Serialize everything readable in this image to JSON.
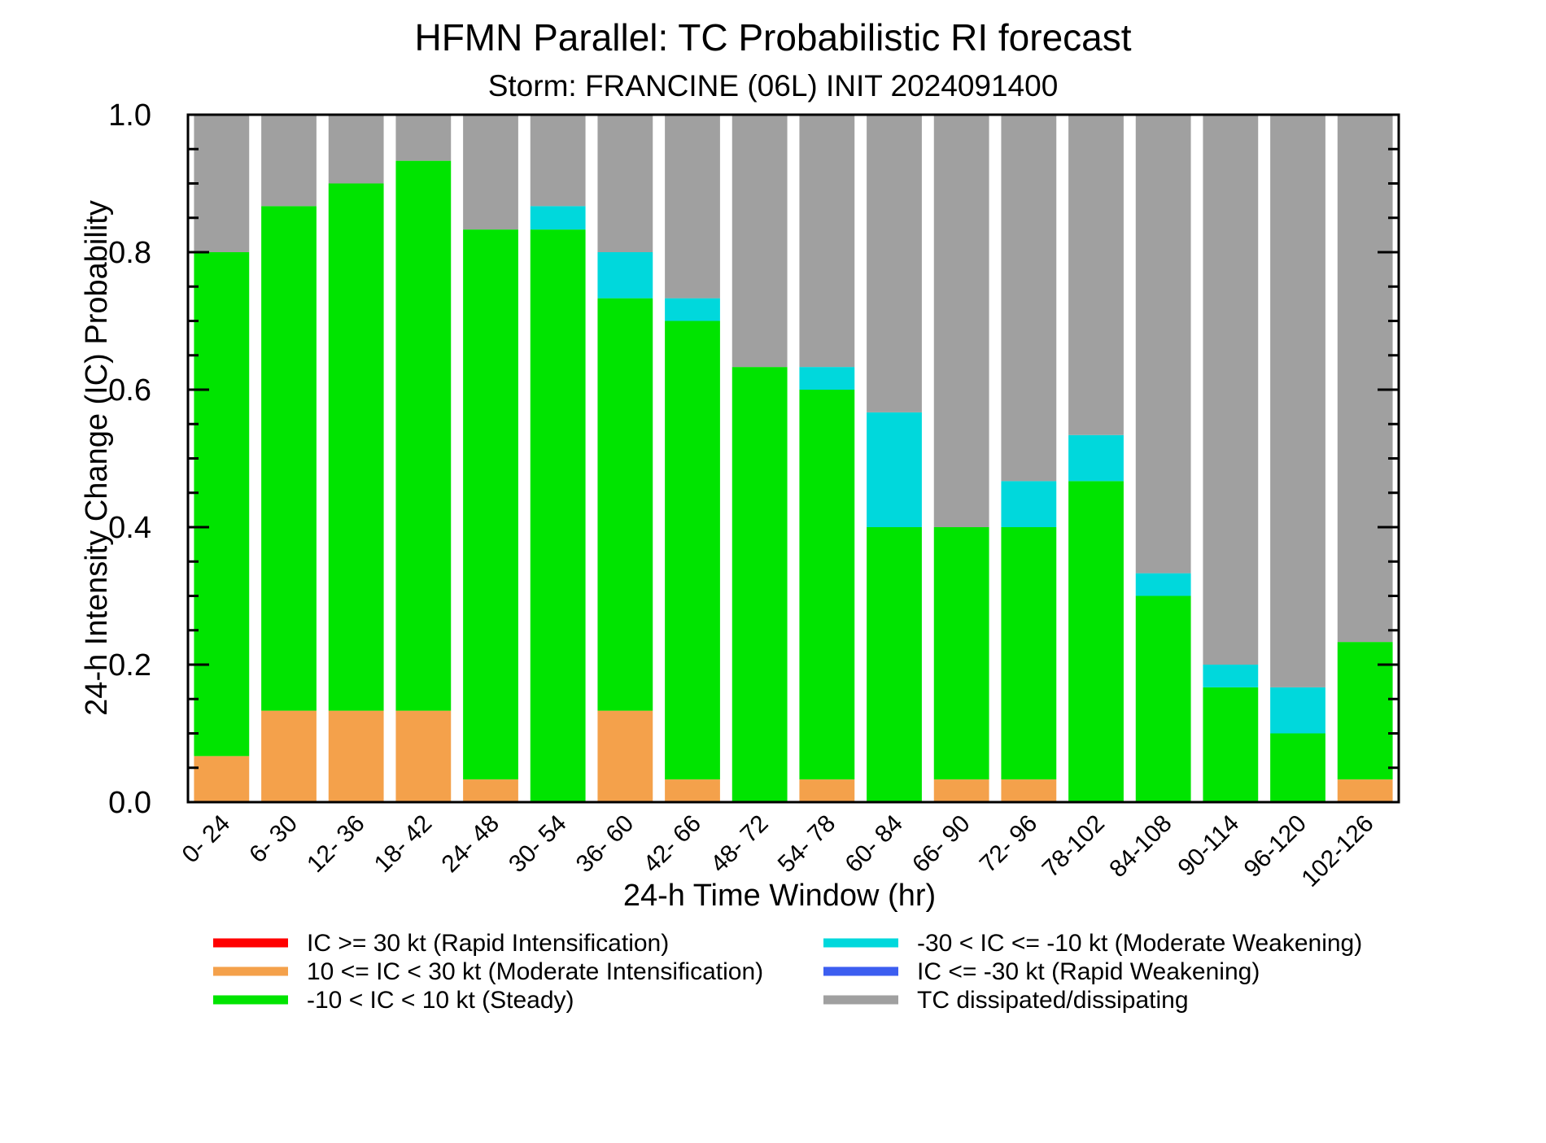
{
  "chart_data": {
    "type": "bar",
    "stacked": true,
    "title": "HFMN Parallel: TC Probabilistic RI forecast",
    "subtitle": "Storm: FRANCINE (06L) INIT 2024091400",
    "xlabel": "24-h Time Window (hr)",
    "ylabel": "24-h Intensity Change (IC) Probability",
    "ylim": [
      0,
      1.0
    ],
    "yticks": [
      "0.0",
      "0.2",
      "0.4",
      "0.6",
      "0.8",
      "1.0"
    ],
    "categories": [
      "0- 24",
      "6- 30",
      "12- 36",
      "18- 42",
      "24- 48",
      "30- 54",
      "36- 60",
      "42- 66",
      "48- 72",
      "54- 78",
      "60- 84",
      "66- 90",
      "72- 96",
      "78-102",
      "84-108",
      "90-114",
      "96-120",
      "102-126"
    ],
    "series": [
      {
        "name": "IC >= 30 kt (Rapid Intensification)",
        "color": "#ff0000",
        "values": [
          0,
          0,
          0,
          0,
          0,
          0,
          0,
          0,
          0,
          0,
          0,
          0,
          0,
          0,
          0,
          0,
          0,
          0
        ]
      },
      {
        "name": "10 <= IC < 30 kt (Moderate Intensification)",
        "color": "#f4a14b",
        "values": [
          0.067,
          0.133,
          0.133,
          0.133,
          0.033,
          0,
          0.133,
          0.033,
          0,
          0.033,
          0,
          0.033,
          0.033,
          0,
          0,
          0,
          0,
          0.033
        ]
      },
      {
        "name": "-10 < IC < 10 kt (Steady)",
        "color": "#00e400",
        "values": [
          0.733,
          0.734,
          0.767,
          0.8,
          0.8,
          0.833,
          0.6,
          0.667,
          0.633,
          0.567,
          0.4,
          0.367,
          0.367,
          0.467,
          0.3,
          0.167,
          0.1,
          0.2
        ]
      },
      {
        "name": "-30 < IC <= -10 kt (Moderate Weakening)",
        "color": "#00d8dc",
        "values": [
          0,
          0,
          0,
          0,
          0,
          0.034,
          0.067,
          0.033,
          0,
          0.033,
          0.167,
          0,
          0.067,
          0.067,
          0.033,
          0.033,
          0.067,
          0
        ]
      },
      {
        "name": "IC <= -30 kt (Rapid Weakening)",
        "color": "#3c5ef0",
        "values": [
          0,
          0,
          0,
          0,
          0,
          0,
          0,
          0,
          0,
          0,
          0,
          0,
          0,
          0,
          0,
          0,
          0,
          0
        ]
      },
      {
        "name": "TC dissipated/dissipating",
        "color": "#a0a0a0",
        "values": [
          0.2,
          0.133,
          0.1,
          0.067,
          0.167,
          0.133,
          0.2,
          0.267,
          0.367,
          0.367,
          0.433,
          0.6,
          0.533,
          0.467,
          0.667,
          0.8,
          0.833,
          0.767
        ]
      }
    ],
    "legend_position": "bottom"
  }
}
